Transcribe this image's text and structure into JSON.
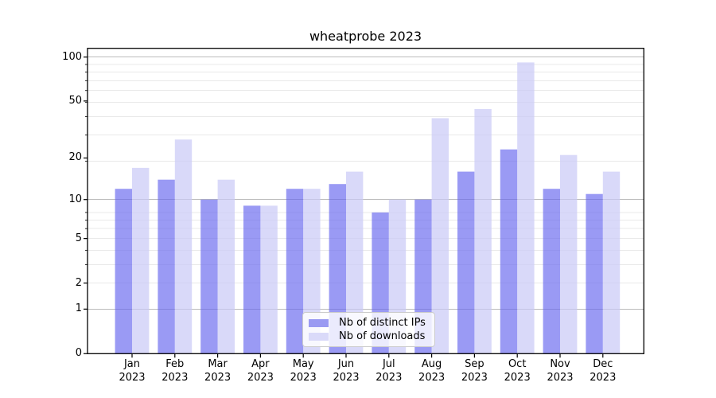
{
  "chart_data": {
    "type": "bar",
    "title": "wheatprobe 2023",
    "categories": [
      "Jan",
      "Feb",
      "Mar",
      "Apr",
      "May",
      "Jun",
      "Jul",
      "Aug",
      "Sep",
      "Oct",
      "Nov",
      "Dec"
    ],
    "year_label": "2023",
    "series": [
      {
        "name": "Nb of distinct IPs",
        "color": "#9a9af2",
        "fill": "#6666ee",
        "fill_opacity": 0.66,
        "values": [
          12,
          14,
          10,
          9,
          12,
          13,
          8,
          10,
          16,
          23,
          12,
          11
        ]
      },
      {
        "name": "Nb of downloads",
        "color": "#dadaf9",
        "fill": "#c9c9f6",
        "fill_opacity": 0.7,
        "values": [
          17,
          27,
          14,
          9,
          12,
          16,
          10,
          38,
          44,
          92,
          21,
          16
        ]
      }
    ],
    "yscale": "log10(1+x)",
    "ylim": [
      0,
      115
    ],
    "yticks": [
      0,
      1,
      2,
      5,
      10,
      20,
      50,
      100
    ],
    "grid": {
      "major_values": [
        1,
        10,
        100
      ],
      "minor_log1p_values": [
        3,
        4,
        5,
        6,
        7,
        8,
        9,
        20,
        30,
        40,
        50,
        60,
        70,
        80,
        90
      ],
      "major_color": "#bcbcbc",
      "minor_color": "#e9e9e9"
    },
    "legend_position": "lower center",
    "axis_color": "#000000"
  }
}
